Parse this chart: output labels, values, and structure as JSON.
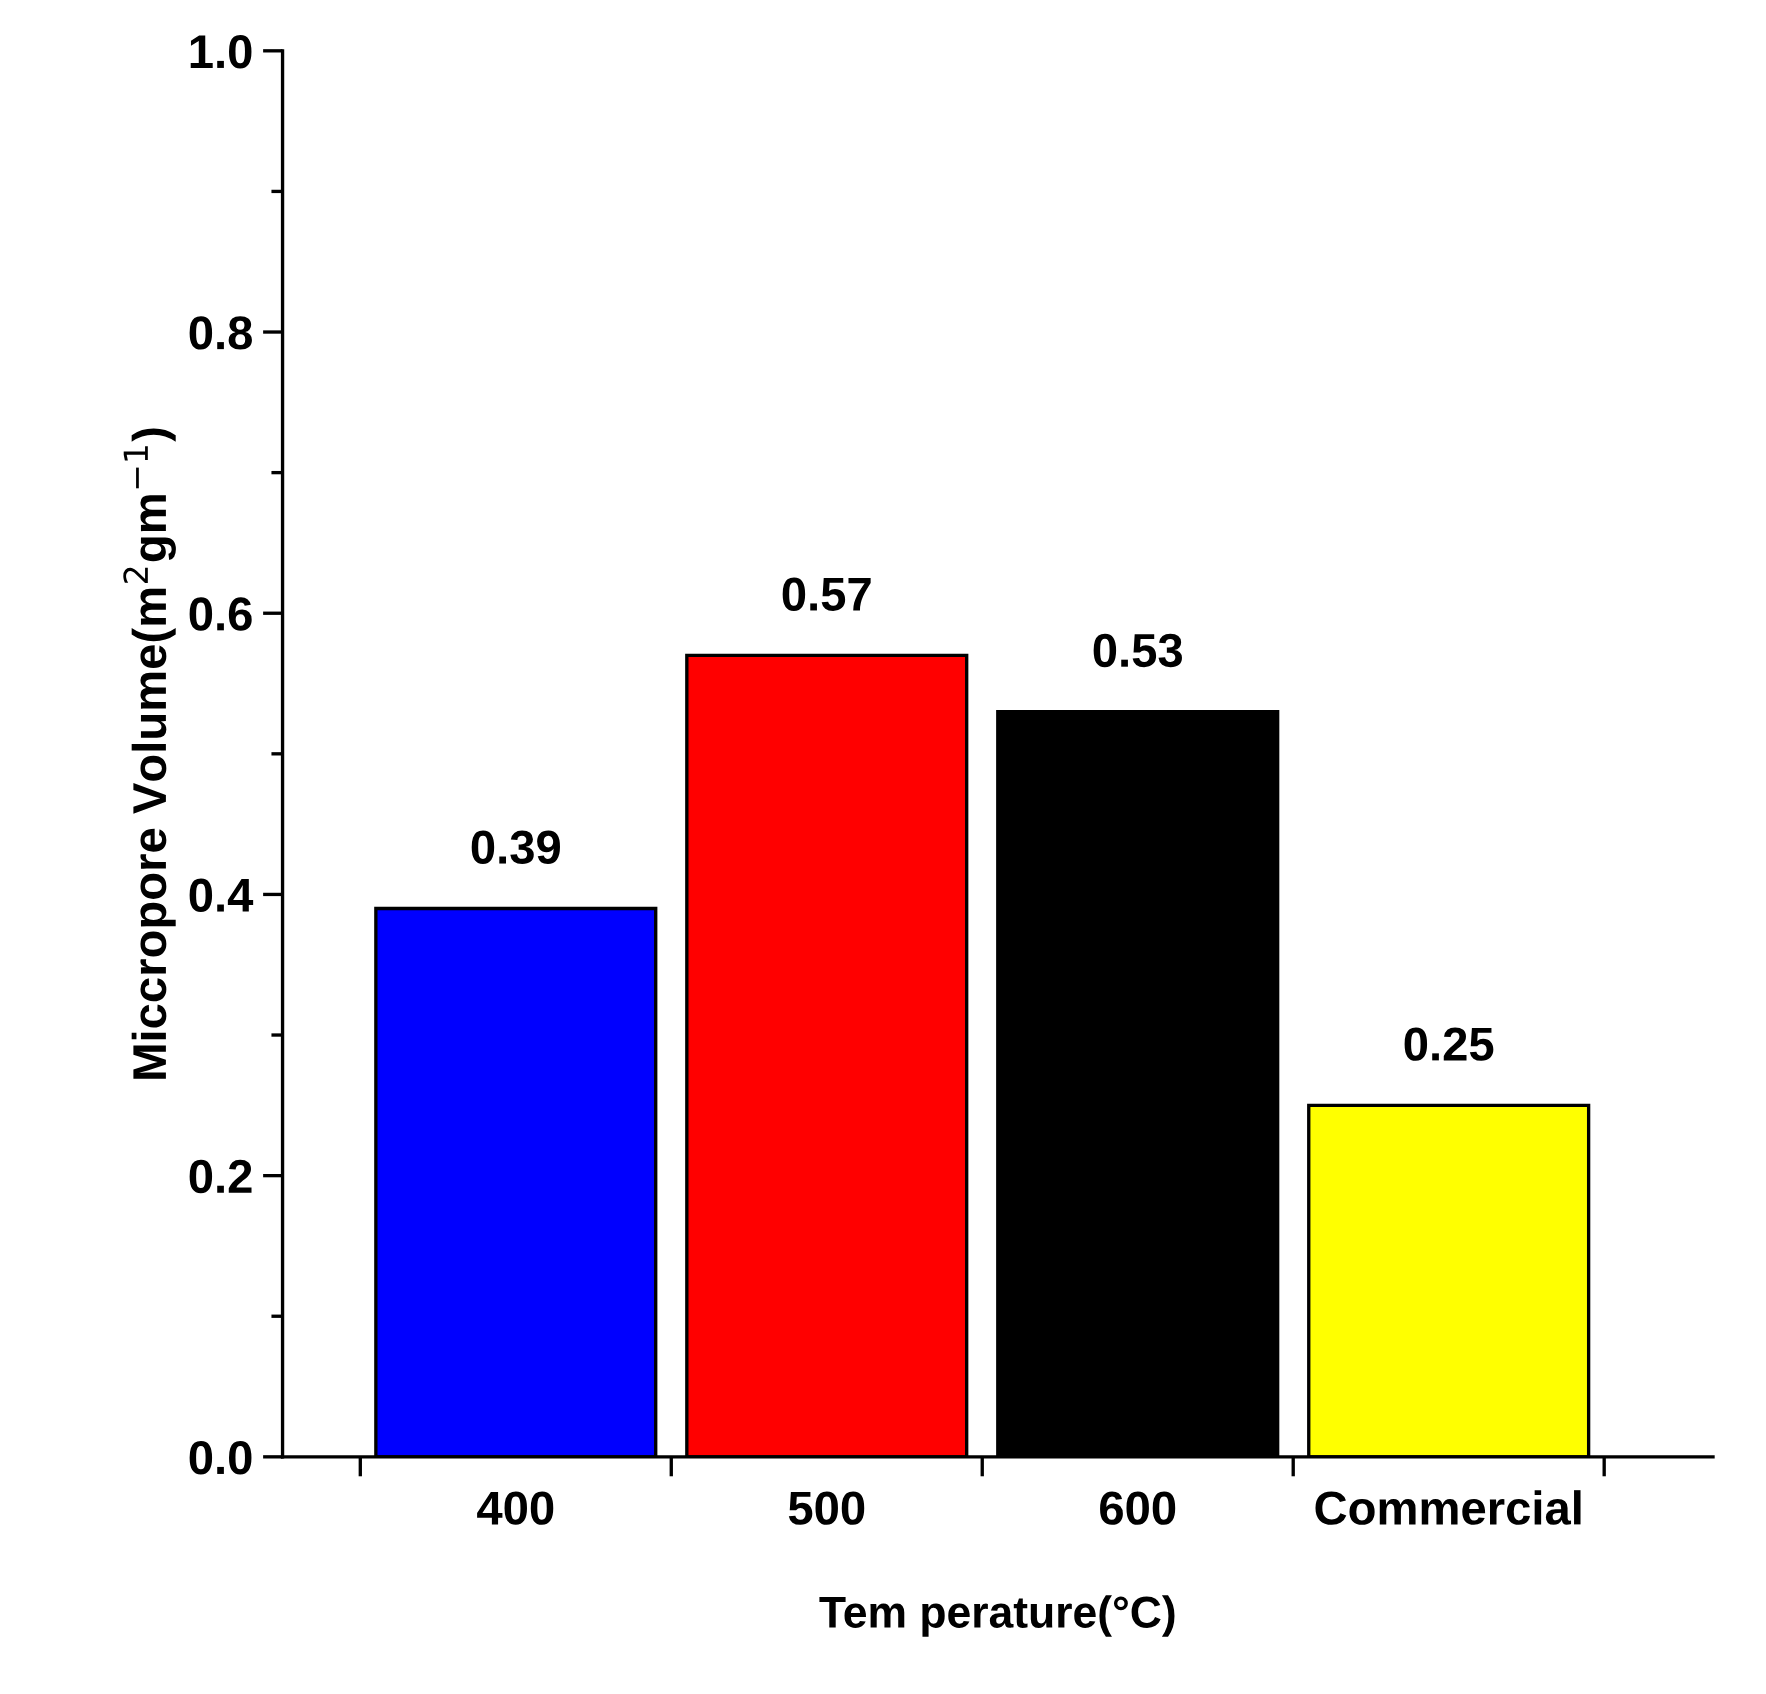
{
  "chart_data": {
    "type": "bar",
    "xlabel": "Tem perature(°C)",
    "ylabel": "Miccropore Volume(m$^{2}$gm$^{−1}$)",
    "categories": [
      "400",
      "500",
      "600",
      "Commercial"
    ],
    "values": [
      0.39,
      0.57,
      0.53,
      0.25
    ],
    "colors": [
      "#0000ff",
      "#ff0000",
      "#000000",
      "#ffff00"
    ],
    "ylim": [
      0.0,
      1.0
    ],
    "yticks": [
      {
        "value": 0.0,
        "label": "0.0"
      },
      {
        "value": 0.2,
        "label": "0.2"
      },
      {
        "value": 0.4,
        "label": "0.4"
      },
      {
        "value": 0.6,
        "label": "0.6"
      },
      {
        "value": 0.8,
        "label": "0.8"
      },
      {
        "value": 1.0,
        "label": "1.0"
      }
    ],
    "data_labels": true,
    "grid": false,
    "legend": false
  }
}
